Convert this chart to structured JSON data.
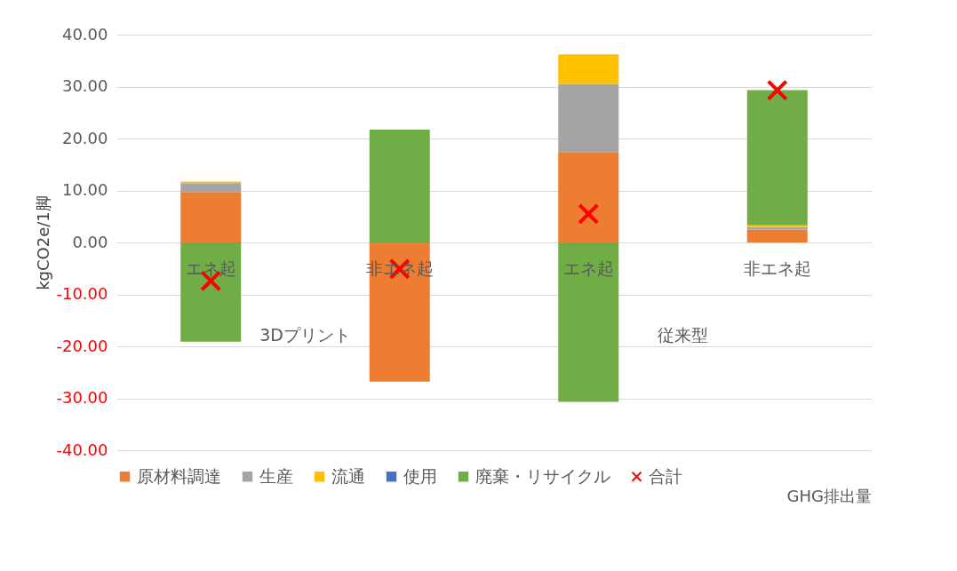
{
  "chart_data": {
    "type": "bar",
    "stacked": true,
    "xlabel": "GHG排出量",
    "ylabel": "kgCO2e/1脚",
    "categories": [
      "エネ起",
      "非エネ起",
      "エネ起",
      "非エネ起"
    ],
    "annotations": [
      "3Dプリント",
      "従来型"
    ],
    "series": [
      {
        "name": "原材料調達",
        "color": "#ed7d31",
        "values": [
          9.7,
          -26.8,
          17.4,
          2.5
        ]
      },
      {
        "name": "生産",
        "color": "#a5a5a5",
        "values": [
          1.7,
          0,
          13.1,
          0.5
        ]
      },
      {
        "name": "流通",
        "color": "#ffc000",
        "values": [
          0.3,
          0,
          5.7,
          0.3
        ]
      },
      {
        "name": "使用",
        "color": "#4472c4",
        "values": [
          0,
          0,
          0,
          0
        ]
      },
      {
        "name": "廃棄・リサイクル",
        "color": "#70ad47",
        "values": [
          -19.1,
          21.7,
          -30.7,
          26.0
        ]
      },
      {
        "name": "合計",
        "type": "scatter",
        "marker": "cross",
        "color": "#ff0000",
        "values": [
          -7.4,
          -5.1,
          5.5,
          29.3
        ]
      }
    ],
    "ylim": [
      -40,
      40
    ],
    "yticks": [
      {
        "value": -40,
        "label": "-40.00"
      },
      {
        "value": -30,
        "label": "-30.00"
      },
      {
        "value": -20,
        "label": "-20.00"
      },
      {
        "value": -10,
        "label": "-10.00"
      },
      {
        "value": 0,
        "label": "0.00"
      },
      {
        "value": 10,
        "label": "10.00"
      },
      {
        "value": 20,
        "label": "20.00"
      },
      {
        "value": 30,
        "label": "30.00"
      },
      {
        "value": 40,
        "label": "40.00"
      }
    ],
    "grid": "y",
    "legend": "bottom"
  }
}
